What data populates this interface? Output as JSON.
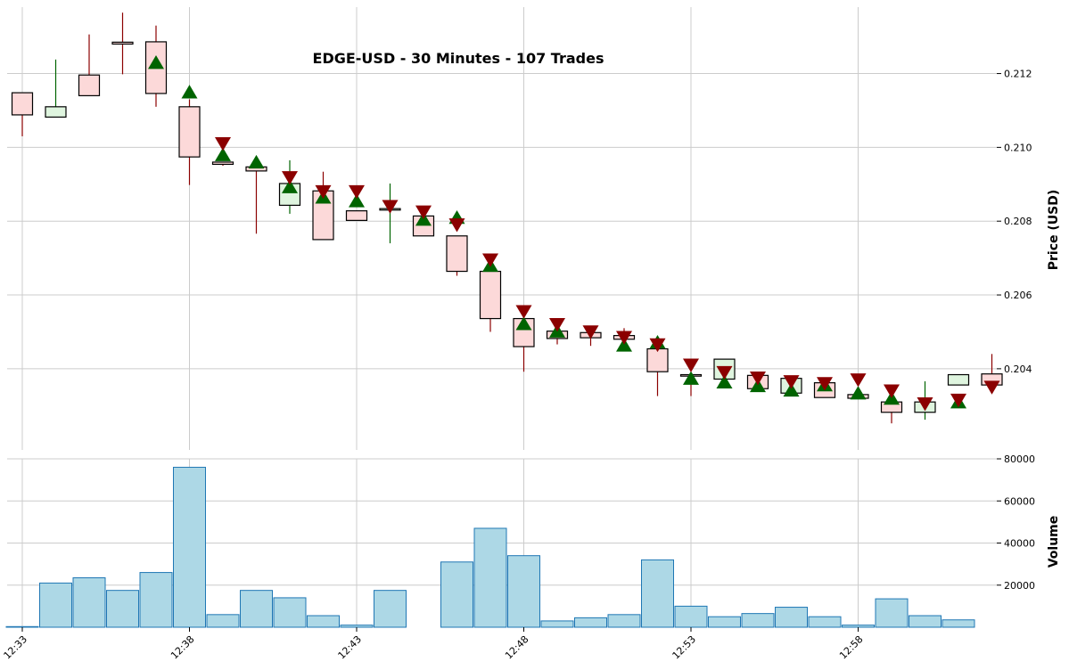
{
  "chart_data": {
    "type": "candlestick",
    "title": "EDGE-USD - 30 Minutes - 107 Trades",
    "price_panel": {
      "ylabel": "Price (USD)",
      "y_ticks": [
        0.204,
        0.206,
        0.208,
        0.21,
        0.212
      ],
      "y_tick_labels": [
        "0.204",
        "0.206",
        "0.208",
        "0.210",
        "0.212"
      ],
      "ylim": [
        0.2018,
        0.2138
      ],
      "grid": true
    },
    "volume_panel": {
      "ylabel": "Volume",
      "y_ticks": [
        20000,
        40000,
        60000,
        80000
      ],
      "y_tick_labels": [
        "20000",
        "40000",
        "60000",
        "80000"
      ],
      "ylim": [
        0,
        80000
      ],
      "grid": true
    },
    "x_ticks": [
      "12:33",
      "12:38",
      "12:43",
      "12:48",
      "12:53",
      "12:58"
    ],
    "candles": [
      {
        "t": "12:33",
        "open": 0.21148,
        "high": 0.21148,
        "low": 0.2103,
        "close": 0.21088,
        "volume": 300
      },
      {
        "t": "12:34",
        "open": 0.21082,
        "high": 0.21238,
        "low": 0.21082,
        "close": 0.2111,
        "volume": 21000
      },
      {
        "t": "12:35",
        "open": 0.21196,
        "high": 0.21306,
        "low": 0.2114,
        "close": 0.2114,
        "volume": 23500
      },
      {
        "t": "12:36",
        "open": 0.21285,
        "high": 0.21365,
        "low": 0.21198,
        "close": 0.2128,
        "volume": 17500
      },
      {
        "t": "12:37",
        "open": 0.21286,
        "high": 0.2133,
        "low": 0.2111,
        "close": 0.21146,
        "volume": 26000
      },
      {
        "t": "12:38",
        "open": 0.2111,
        "high": 0.2113,
        "low": 0.20898,
        "close": 0.20974,
        "volume": 76000
      },
      {
        "t": "12:39",
        "open": 0.2096,
        "high": 0.2096,
        "low": 0.2095,
        "close": 0.20954,
        "volume": 6000
      },
      {
        "t": "12:40",
        "open": 0.20947,
        "high": 0.20955,
        "low": 0.20766,
        "close": 0.20936,
        "volume": 17500
      },
      {
        "t": "12:41",
        "open": 0.20843,
        "high": 0.20965,
        "low": 0.2082,
        "close": 0.20902,
        "volume": 14000
      },
      {
        "t": "12:42",
        "open": 0.20882,
        "high": 0.20934,
        "low": 0.2075,
        "close": 0.2075,
        "volume": 5500
      },
      {
        "t": "12:43",
        "open": 0.20828,
        "high": 0.20828,
        "low": 0.20802,
        "close": 0.20802,
        "volume": 1000
      },
      {
        "t": "12:44",
        "open": 0.2083,
        "high": 0.20902,
        "low": 0.2074,
        "close": 0.20834,
        "volume": 17500
      },
      {
        "t": "12:45",
        "open": 0.20814,
        "high": 0.20814,
        "low": 0.2076,
        "close": 0.2076,
        "volume": null
      },
      {
        "t": "12:46",
        "open": 0.2076,
        "high": 0.2076,
        "low": 0.20652,
        "close": 0.20664,
        "volume": 31000
      },
      {
        "t": "12:47",
        "open": 0.20664,
        "high": 0.20664,
        "low": 0.205,
        "close": 0.20536,
        "volume": 47000
      },
      {
        "t": "12:48",
        "open": 0.20536,
        "high": 0.20536,
        "low": 0.20392,
        "close": 0.2046,
        "volume": 34000
      },
      {
        "t": "12:49",
        "open": 0.20502,
        "high": 0.20502,
        "low": 0.20466,
        "close": 0.20482,
        "volume": 3000
      },
      {
        "t": "12:50",
        "open": 0.20498,
        "high": 0.2051,
        "low": 0.20462,
        "close": 0.20484,
        "volume": 4500
      },
      {
        "t": "12:51",
        "open": 0.2049,
        "high": 0.2051,
        "low": 0.20478,
        "close": 0.2048,
        "volume": 6000
      },
      {
        "t": "12:52",
        "open": 0.20454,
        "high": 0.20472,
        "low": 0.20326,
        "close": 0.20392,
        "volume": 32000
      },
      {
        "t": "12:53",
        "open": 0.20384,
        "high": 0.20386,
        "low": 0.20326,
        "close": 0.2038,
        "volume": 10000
      },
      {
        "t": "12:54",
        "open": 0.20372,
        "high": 0.20426,
        "low": 0.20372,
        "close": 0.20426,
        "volume": 5000
      },
      {
        "t": "12:55",
        "open": 0.20382,
        "high": 0.20382,
        "low": 0.20346,
        "close": 0.20346,
        "volume": 6500
      },
      {
        "t": "12:56",
        "open": 0.20334,
        "high": 0.20374,
        "low": 0.20334,
        "close": 0.20374,
        "volume": 9500
      },
      {
        "t": "12:57",
        "open": 0.20362,
        "high": 0.20362,
        "low": 0.20322,
        "close": 0.20322,
        "volume": 5000
      },
      {
        "t": "12:58",
        "open": 0.2033,
        "high": 0.2033,
        "low": 0.2032,
        "close": 0.2032,
        "volume": 1000
      },
      {
        "t": "12:59",
        "open": 0.2031,
        "high": 0.2031,
        "low": 0.20252,
        "close": 0.20282,
        "volume": 13500
      },
      {
        "t": "13:00",
        "open": 0.20282,
        "high": 0.20366,
        "low": 0.20262,
        "close": 0.2031,
        "volume": 5500
      },
      {
        "t": "13:01",
        "open": 0.20356,
        "high": 0.20384,
        "low": 0.20356,
        "close": 0.20384,
        "volume": 3500
      },
      {
        "t": "13:02",
        "open": 0.20386,
        "high": 0.2044,
        "low": 0.20356,
        "close": 0.20356,
        "volume": null
      }
    ],
    "buy_markers": [
      {
        "t": "12:37",
        "price": 0.2123
      },
      {
        "t": "12:38",
        "price": 0.2115
      },
      {
        "t": "12:39",
        "price": 0.2098
      },
      {
        "t": "12:40",
        "price": 0.2096
      },
      {
        "t": "12:41",
        "price": 0.20893
      },
      {
        "t": "12:42",
        "price": 0.20865
      },
      {
        "t": "12:43",
        "price": 0.20855
      },
      {
        "t": "12:45",
        "price": 0.20805
      },
      {
        "t": "12:46",
        "price": 0.2081
      },
      {
        "t": "12:47",
        "price": 0.2068
      },
      {
        "t": "12:48",
        "price": 0.20522
      },
      {
        "t": "12:49",
        "price": 0.20502
      },
      {
        "t": "12:51",
        "price": 0.20464
      },
      {
        "t": "12:52",
        "price": 0.20472
      },
      {
        "t": "12:53",
        "price": 0.20374
      },
      {
        "t": "12:54",
        "price": 0.20364
      },
      {
        "t": "12:55",
        "price": 0.20354
      },
      {
        "t": "12:56",
        "price": 0.20342
      },
      {
        "t": "12:57",
        "price": 0.20356
      },
      {
        "t": "12:58",
        "price": 0.20334
      },
      {
        "t": "12:59",
        "price": 0.2032
      },
      {
        "t": "13:01",
        "price": 0.2031
      }
    ],
    "sell_markers": [
      {
        "t": "12:39",
        "price": 0.2101
      },
      {
        "t": "12:41",
        "price": 0.20918
      },
      {
        "t": "12:42",
        "price": 0.2088
      },
      {
        "t": "12:43",
        "price": 0.2088
      },
      {
        "t": "12:44",
        "price": 0.2084
      },
      {
        "t": "12:45",
        "price": 0.20825
      },
      {
        "t": "12:46",
        "price": 0.2079
      },
      {
        "t": "12:47",
        "price": 0.20695
      },
      {
        "t": "12:48",
        "price": 0.20555
      },
      {
        "t": "12:49",
        "price": 0.2052
      },
      {
        "t": "12:50",
        "price": 0.205
      },
      {
        "t": "12:51",
        "price": 0.20485
      },
      {
        "t": "12:52",
        "price": 0.20465
      },
      {
        "t": "12:53",
        "price": 0.2041
      },
      {
        "t": "12:54",
        "price": 0.2039
      },
      {
        "t": "12:55",
        "price": 0.20375
      },
      {
        "t": "12:56",
        "price": 0.20365
      },
      {
        "t": "12:57",
        "price": 0.2036
      },
      {
        "t": "12:58",
        "price": 0.2037
      },
      {
        "t": "12:59",
        "price": 0.2034
      },
      {
        "t": "13:00",
        "price": 0.20305
      },
      {
        "t": "13:01",
        "price": 0.20315
      },
      {
        "t": "13:02",
        "price": 0.2035
      }
    ],
    "colors": {
      "up_fill": "#dff5df",
      "up_wick": "#006400",
      "down_fill": "#fcd9d9",
      "down_wick": "#8b0000",
      "candle_edge": "#000000",
      "buy_marker": "#006400",
      "sell_marker": "#8b0000",
      "volume_fill": "#add8e6",
      "volume_edge": "#1f77b4",
      "grid": "#cccccc"
    }
  }
}
